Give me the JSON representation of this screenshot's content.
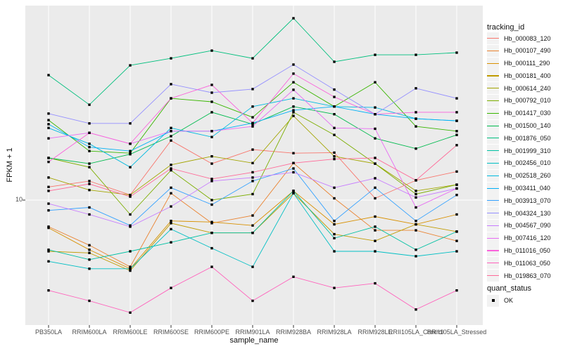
{
  "chart_data": {
    "type": "line",
    "title": "",
    "xlabel": "sample_name",
    "ylabel": "FPKM + 1",
    "yscale": "log10",
    "yticks": [
      10
    ],
    "ylim_approx": [
      2.4,
      90
    ],
    "grid": "major-only",
    "legend_position": "right",
    "marker": "black-square",
    "categories": [
      "PB350LA",
      "RRIM600LA",
      "RRIM600LE",
      "RRIM600SE",
      "RRIM600PE",
      "RRIM901LA",
      "RRIM928BA",
      "RRIM928LA",
      "RRIM928LE",
      "RRII105LA_Control",
      "RRII105LA_Stressed"
    ],
    "series": [
      {
        "name": "Hb_000083_120",
        "color": "#F8766D",
        "values": [
          11.6,
          12.4,
          10.6,
          19.6,
          15.1,
          17.7,
          17.0,
          17.1,
          10.2,
          12.5,
          13.8
        ]
      },
      {
        "name": "Hb_000107_490",
        "color": "#EA8331",
        "values": [
          7.4,
          6.0,
          4.7,
          10.8,
          7.7,
          8.4,
          15.2,
          10.2,
          7.1,
          7.1,
          6.3
        ]
      },
      {
        "name": "Hb_000111_290",
        "color": "#D89000",
        "values": [
          7.3,
          5.7,
          4.6,
          7.9,
          7.8,
          7.5,
          11.1,
          7.6,
          8.3,
          7.6,
          8.5
        ]
      },
      {
        "name": "Hb_000181_400",
        "color": "#C09B00",
        "values": [
          5.6,
          5.5,
          4.5,
          7.7,
          6.9,
          6.9,
          10.8,
          6.8,
          6.3,
          7.6,
          7.0
        ]
      },
      {
        "name": "Hb_000614_240",
        "color": "#A3A500",
        "values": [
          12.9,
          11.2,
          10.6,
          14.9,
          16.4,
          15.2,
          25.9,
          16.4,
          15.1,
          11.1,
          11.9
        ]
      },
      {
        "name": "Hb_000792_010",
        "color": "#7CAE00",
        "values": [
          16.1,
          14.5,
          8.5,
          14.0,
          10.0,
          10.7,
          27.0,
          20.9,
          15.1,
          10.7,
          11.9
        ]
      },
      {
        "name": "Hb_001417_030",
        "color": "#39B600",
        "values": [
          24.7,
          17.4,
          17.0,
          31.6,
          30.4,
          25.5,
          37.9,
          28.8,
          37.9,
          23.0,
          21.8
        ]
      },
      {
        "name": "Hb_001500_140",
        "color": "#00BB4E",
        "values": [
          16.1,
          15.1,
          16.8,
          20.6,
          27.0,
          23.6,
          28.8,
          26.4,
          20.1,
          17.9,
          20.9
        ]
      },
      {
        "name": "Hb_001876_050",
        "color": "#00BF7D",
        "values": [
          41.1,
          29.4,
          45.9,
          49.7,
          54.2,
          49.7,
          78.2,
          47.8,
          51.7,
          51.7,
          53.0
        ]
      },
      {
        "name": "Hb_001999_310",
        "color": "#00C1A3",
        "values": [
          5.7,
          5.1,
          5.6,
          6.2,
          6.9,
          6.9,
          11.1,
          6.5,
          7.4,
          5.7,
          7.0
        ]
      },
      {
        "name": "Hb_002456_010",
        "color": "#00BFC4",
        "values": [
          5.0,
          4.6,
          4.6,
          7.2,
          5.8,
          4.7,
          10.8,
          5.6,
          5.6,
          5.3,
          5.6
        ]
      },
      {
        "name": "Hb_002518_260",
        "color": "#00BAE0",
        "values": [
          22.6,
          18.9,
          14.5,
          22.6,
          20.4,
          28.8,
          31.6,
          28.8,
          28.5,
          25.1,
          24.5
        ]
      },
      {
        "name": "Hb_003411_040",
        "color": "#00B0F6",
        "values": [
          23.6,
          18.2,
          17.4,
          21.8,
          21.8,
          23.9,
          27.6,
          28.8,
          26.4,
          25.1,
          24.5
        ]
      },
      {
        "name": "Hb_003913_070",
        "color": "#35A2FF",
        "values": [
          8.9,
          9.2,
          7.5,
          11.5,
          9.5,
          12.4,
          14.3,
          7.9,
          11.5,
          7.9,
          10.6
        ]
      },
      {
        "name": "Hb_004324_130",
        "color": "#9590FF",
        "values": [
          26.6,
          23.8,
          23.8,
          37.1,
          33.7,
          35.1,
          46.3,
          34.9,
          26.4,
          35.4,
          31.6
        ]
      },
      {
        "name": "Hb_004567_090",
        "color": "#C77CFF",
        "values": [
          9.6,
          8.5,
          7.4,
          9.3,
          12.4,
          12.9,
          13.7,
          11.5,
          12.8,
          10.3,
          11.4
        ]
      },
      {
        "name": "Hb_007416_120",
        "color": "#E76BF3",
        "values": [
          20.1,
          21.4,
          18.9,
          21.8,
          21.8,
          23.0,
          34.8,
          22.6,
          22.4,
          9.2,
          11.4
        ]
      },
      {
        "name": "Hb_011016_050",
        "color": "#FA62DB",
        "values": [
          15.4,
          21.4,
          18.9,
          31.6,
          36.8,
          23.9,
          41.8,
          32.1,
          26.4,
          27.0,
          27.0
        ]
      },
      {
        "name": "Hb_011063_050",
        "color": "#FF62BC",
        "values": [
          3.6,
          3.2,
          2.8,
          3.7,
          4.7,
          3.2,
          4.2,
          3.7,
          3.9,
          2.9,
          3.6
        ]
      },
      {
        "name": "Hb_019863_070",
        "color": "#FF6A98",
        "values": [
          11.1,
          12.0,
          10.4,
          14.3,
          12.7,
          13.7,
          15.2,
          15.9,
          16.1,
          12.5,
          18.6
        ]
      }
    ],
    "legend": {
      "series_title": "tracking_id",
      "shape_title": "quant_status",
      "shape_label": "OK"
    }
  },
  "colors": {
    "panel_bg": "#EBEBEB",
    "grid": "#FFFFFF",
    "tick_text": "#4D4D4D",
    "tick_mark": "#333333",
    "marker": "#000000",
    "legend_key_bg": "#F2F2F2",
    "background": "#FFFFFF"
  }
}
